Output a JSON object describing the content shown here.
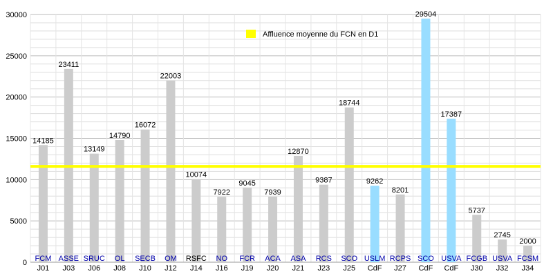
{
  "chart_data": {
    "type": "bar",
    "ylim": [
      0,
      30000
    ],
    "yticks": [
      0,
      5000,
      10000,
      15000,
      20000,
      25000,
      30000
    ],
    "grid": true,
    "legend_position": "top-center",
    "average_line": {
      "value": 11600,
      "label": "Affluence moyenne du FCN en D1",
      "color": "#ffff00"
    },
    "colors": {
      "default": "#cccccc",
      "highlight": "#99ddff",
      "opponent_text": "#0000aa",
      "opponent_text_alt": "#000000"
    },
    "bars": [
      {
        "category": "J01",
        "opponent": "FCM",
        "value": 14185,
        "highlight": false,
        "opp_color": "blue"
      },
      {
        "category": "J03",
        "opponent": "ASSE",
        "value": 23411,
        "highlight": false,
        "opp_color": "blue"
      },
      {
        "category": "J06",
        "opponent": "SRUC",
        "value": 13149,
        "highlight": false,
        "opp_color": "blue"
      },
      {
        "category": "J08",
        "opponent": "OL",
        "value": 14790,
        "highlight": false,
        "opp_color": "blue"
      },
      {
        "category": "J10",
        "opponent": "SECB",
        "value": 16072,
        "highlight": false,
        "opp_color": "blue"
      },
      {
        "category": "J12",
        "opponent": "OM",
        "value": 22003,
        "highlight": false,
        "opp_color": "blue"
      },
      {
        "category": "J14",
        "opponent": "RSFC",
        "value": 10074,
        "highlight": false,
        "opp_color": "black"
      },
      {
        "category": "J16",
        "opponent": "NO",
        "value": 7922,
        "highlight": false,
        "opp_color": "blue"
      },
      {
        "category": "J19",
        "opponent": "FCR",
        "value": 9045,
        "highlight": false,
        "opp_color": "blue"
      },
      {
        "category": "J20",
        "opponent": "ACA",
        "value": 7939,
        "highlight": false,
        "opp_color": "blue"
      },
      {
        "category": "J21",
        "opponent": "ASA",
        "value": 12870,
        "highlight": false,
        "opp_color": "blue"
      },
      {
        "category": "J23",
        "opponent": "RCS",
        "value": 9387,
        "highlight": false,
        "opp_color": "blue"
      },
      {
        "category": "J25",
        "opponent": "SCO",
        "value": 18744,
        "highlight": false,
        "opp_color": "blue"
      },
      {
        "category": "CdF",
        "opponent": "USLM",
        "value": 9262,
        "highlight": true,
        "opp_color": "blue"
      },
      {
        "category": "J27",
        "opponent": "RCPS",
        "value": 8201,
        "highlight": false,
        "opp_color": "blue"
      },
      {
        "category": "CdF",
        "opponent": "SCO",
        "value": 29504,
        "highlight": true,
        "opp_color": "blue"
      },
      {
        "category": "CdF",
        "opponent": "USVA",
        "value": 17387,
        "highlight": true,
        "opp_color": "blue"
      },
      {
        "category": "J30",
        "opponent": "FCGB",
        "value": 5737,
        "highlight": false,
        "opp_color": "blue"
      },
      {
        "category": "J32",
        "opponent": "USVA",
        "value": 2745,
        "highlight": false,
        "opp_color": "blue"
      },
      {
        "category": "J34",
        "opponent": "FCSM",
        "value": 2000,
        "highlight": false,
        "opp_color": "blue"
      }
    ]
  }
}
